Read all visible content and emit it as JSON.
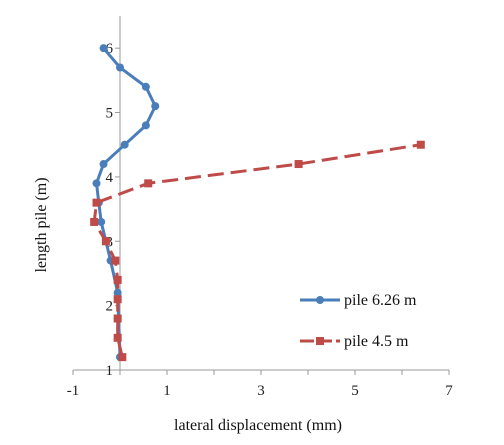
{
  "chart_data": {
    "type": "line",
    "xlabel": "lateral displacement (mm)",
    "ylabel": "length pile (m)",
    "xlim": [
      -1,
      7
    ],
    "ylim": [
      1,
      6.5
    ],
    "x_ticks": [
      "-1",
      "1",
      "3",
      "5",
      "7"
    ],
    "y_ticks": [
      "1",
      "2",
      "3",
      "4",
      "5",
      "6"
    ],
    "grid": false,
    "legend_position": "right",
    "series": [
      {
        "name": "pile 6.26 m",
        "color": "#4a7ebb",
        "marker": "circle",
        "line_style": "solid",
        "points": [
          {
            "x": 0.0,
            "y": 1.2
          },
          {
            "x": -0.05,
            "y": 2.2
          },
          {
            "x": -0.2,
            "y": 2.7
          },
          {
            "x": -0.3,
            "y": 3.0
          },
          {
            "x": -0.4,
            "y": 3.3
          },
          {
            "x": -0.45,
            "y": 3.6
          },
          {
            "x": -0.5,
            "y": 3.9
          },
          {
            "x": -0.35,
            "y": 4.2
          },
          {
            "x": 0.1,
            "y": 4.5
          },
          {
            "x": 0.55,
            "y": 4.8
          },
          {
            "x": 0.75,
            "y": 5.1
          },
          {
            "x": 0.55,
            "y": 5.4
          },
          {
            "x": 0.0,
            "y": 5.7
          },
          {
            "x": -0.35,
            "y": 6.0
          }
        ]
      },
      {
        "name": "pile 4.5 m",
        "color": "#be4b48",
        "marker": "square",
        "line_style": "dashed",
        "points": [
          {
            "x": 0.05,
            "y": 1.2
          },
          {
            "x": -0.05,
            "y": 1.5
          },
          {
            "x": -0.05,
            "y": 1.8
          },
          {
            "x": -0.05,
            "y": 2.1
          },
          {
            "x": -0.05,
            "y": 2.4
          },
          {
            "x": -0.1,
            "y": 2.7
          },
          {
            "x": -0.3,
            "y": 3.0
          },
          {
            "x": -0.55,
            "y": 3.3
          },
          {
            "x": -0.5,
            "y": 3.6
          },
          {
            "x": 0.6,
            "y": 3.9
          },
          {
            "x": 3.8,
            "y": 4.2
          },
          {
            "x": 6.4,
            "y": 4.5
          }
        ]
      }
    ]
  }
}
